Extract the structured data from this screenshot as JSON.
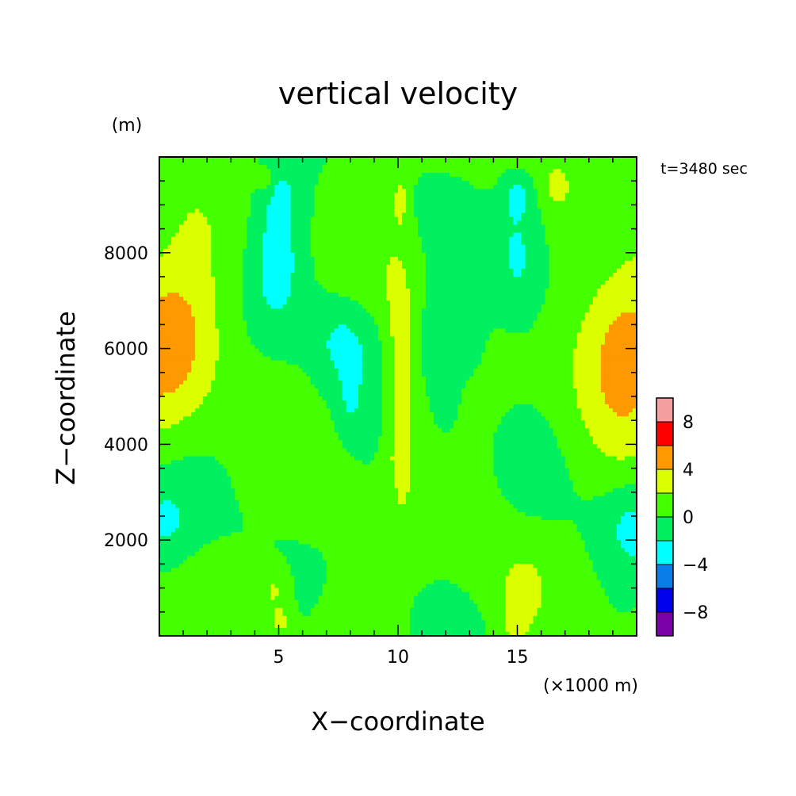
{
  "chart_data": {
    "type": "heatmap",
    "title": "vertical velocity",
    "xlabel": "X−coordinate",
    "ylabel": "Z−coordinate",
    "x_unit": "(×1000 m)",
    "y_unit": "(m)",
    "time_label": "t=3480 sec",
    "xlim": [
      0,
      20
    ],
    "ylim": [
      0,
      10000
    ],
    "x_ticks": [
      5,
      10,
      15
    ],
    "x_tick_labels": [
      "5",
      "10",
      "15"
    ],
    "y_ticks": [
      2000,
      4000,
      6000,
      8000
    ],
    "y_tick_labels": [
      "2000",
      "4000",
      "6000",
      "8000"
    ],
    "colorbar": {
      "levels": [
        -10,
        -8,
        -6,
        -4,
        -2,
        0,
        2,
        4,
        6,
        8,
        10
      ],
      "colors": [
        "#7a00a8",
        "#0000ee",
        "#0a7de8",
        "#00ffff",
        "#00f060",
        "#44ff00",
        "#dcff00",
        "#ff9900",
        "#ff0000",
        "#f5a0a0"
      ],
      "tick_values": [
        -8,
        -4,
        0,
        4,
        8
      ],
      "tick_labels": [
        "−8",
        "−4",
        "0",
        "4",
        "8"
      ]
    },
    "background_band": "0 to 2",
    "features": [
      {
        "x": 0.4,
        "z": 6200,
        "sx": 1.4,
        "sz": 1300,
        "w": 4.8
      },
      {
        "x": 19.6,
        "z": 6200,
        "sx": 1.4,
        "sz": 1300,
        "w": 4.8
      },
      {
        "x": 0.1,
        "z": 2300,
        "sx": 1.0,
        "sz": 700,
        "w": -2.8
      },
      {
        "x": 19.9,
        "z": 2300,
        "sx": 1.0,
        "sz": 700,
        "w": -2.8
      },
      {
        "x": 4.9,
        "z": 8000,
        "sx": 0.8,
        "sz": 1100,
        "w": -3.0
      },
      {
        "x": 15.1,
        "z": 8000,
        "sx": 0.8,
        "sz": 1100,
        "w": -3.0
      },
      {
        "x": 5.0,
        "z": 9200,
        "sx": 0.4,
        "sz": 300,
        "w": -2.5
      },
      {
        "x": 15.0,
        "z": 9200,
        "sx": 0.4,
        "sz": 300,
        "w": -2.5
      },
      {
        "x": 7.8,
        "z": 6200,
        "sx": 1.0,
        "sz": 700,
        "w": -2.7
      },
      {
        "x": 12.2,
        "z": 6200,
        "sx": 1.0,
        "sz": 700,
        "w": -2.7
      },
      {
        "x": 10.1,
        "z": 5200,
        "sx": 0.45,
        "sz": 1800,
        "w": 3.0
      },
      {
        "x": 10.1,
        "z": 3700,
        "sx": 0.2,
        "sz": 200,
        "w": 1.6
      },
      {
        "x": 10.1,
        "z": 9100,
        "sx": 0.2,
        "sz": 350,
        "w": 2.6
      },
      {
        "x": 4.6,
        "z": 9400,
        "sx": 0.3,
        "sz": 250,
        "w": 2.2
      },
      {
        "x": 16.7,
        "z": 9400,
        "sx": 0.3,
        "sz": 250,
        "w": 2.2
      },
      {
        "x": 4.8,
        "z": 1000,
        "sx": 0.45,
        "sz": 350,
        "w": 2.3
      },
      {
        "x": 15.2,
        "z": 1000,
        "sx": 0.45,
        "sz": 350,
        "w": 2.3
      },
      {
        "x": 5.1,
        "z": 300,
        "sx": 0.35,
        "sz": 250,
        "w": 2.3
      },
      {
        "x": 14.9,
        "z": 300,
        "sx": 0.35,
        "sz": 250,
        "w": 2.3
      },
      {
        "x": 8.0,
        "z": 4800,
        "sx": 0.4,
        "sz": 500,
        "w": -1.5
      },
      {
        "x": 12.0,
        "z": 4800,
        "sx": 0.4,
        "sz": 500,
        "w": -1.5
      }
    ]
  }
}
